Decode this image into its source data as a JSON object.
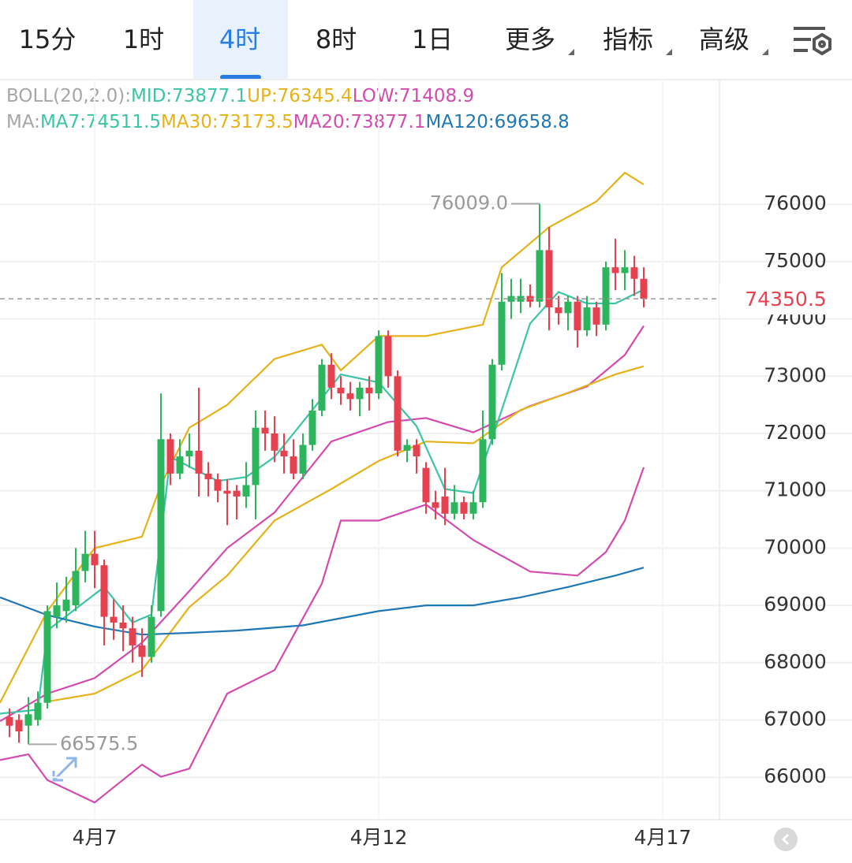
{
  "tabs": [
    "15分",
    "1时",
    "4时",
    "8时",
    "1日",
    "更多",
    "指标",
    "高级"
  ],
  "active_tab": 2,
  "chart_data": {
    "type": "candlestick",
    "legend": [
      [
        {
          "text": "BOLL(20,2.0):",
          "color": "#a6a6a6"
        },
        {
          "text": "MID:73877.1",
          "color": "#3cc4a6"
        },
        {
          "text": "UP:76345.4",
          "color": "#e6b21a"
        },
        {
          "text": "LOW:71408.9",
          "color": "#d44bb0"
        }
      ],
      [
        {
          "text": "MA:",
          "color": "#a6a6a6"
        },
        {
          "text": "MA7:74511.5",
          "color": "#3cc4a6"
        },
        {
          "text": "MA30:73173.5",
          "color": "#e6b21a"
        },
        {
          "text": "MA20:73877.1",
          "color": "#d44bb0"
        },
        {
          "text": "MA120:69658.8",
          "color": "#1f78b4"
        }
      ]
    ],
    "xlim": [
      -1,
      75
    ],
    "ylim": [
      65260,
      78190
    ],
    "yticks": [
      66000,
      67000,
      68000,
      69000,
      70000,
      71000,
      72000,
      73000,
      74000,
      75000,
      76000
    ],
    "xticks": [
      {
        "value": 9,
        "label": "4月7"
      },
      {
        "value": 39,
        "label": "4月12"
      },
      {
        "value": 69,
        "label": "4月17"
      }
    ],
    "grid": true,
    "up_color": "#2db55d",
    "down_color": "#e5414f",
    "candles": {
      "x": [
        0,
        1,
        2,
        3,
        4,
        5,
        6,
        7,
        8,
        9,
        10,
        11,
        12,
        13,
        14,
        15,
        16,
        17,
        18,
        19,
        20,
        21,
        22,
        23,
        24,
        25,
        26,
        27,
        28,
        29,
        30,
        31,
        32,
        33,
        34,
        35,
        36,
        37,
        38,
        39,
        40,
        41,
        42,
        43,
        44,
        45,
        46,
        47,
        48,
        49,
        50,
        51,
        52,
        53,
        54,
        55,
        56,
        57,
        58,
        59,
        60,
        61,
        62,
        63,
        64,
        65,
        66,
        67
      ],
      "open": [
        67050,
        67000,
        66900,
        67000,
        67300,
        68800,
        68900,
        69000,
        69600,
        69900,
        69700,
        68800,
        68700,
        68600,
        68300,
        68100,
        68900,
        71900,
        71300,
        71600,
        71700,
        71300,
        71200,
        71000,
        71000,
        70900,
        71100,
        72100,
        72000,
        71700,
        71600,
        71300,
        71800,
        72400,
        73200,
        72800,
        72700,
        72600,
        72800,
        72700,
        73700,
        73000,
        71700,
        71800,
        71400,
        70800,
        70900,
        70600,
        70800,
        70600,
        70800,
        71900,
        73200,
        74300,
        74300,
        74400,
        74300,
        75200,
        74200,
        74100,
        74300,
        73800,
        74200,
        73900,
        74900,
        74800,
        74900,
        74700
      ],
      "high": [
        67200,
        67100,
        67400,
        67500,
        69000,
        69400,
        69500,
        70000,
        70300,
        70300,
        69800,
        69100,
        69000,
        68800,
        68600,
        69000,
        72700,
        72000,
        71900,
        72000,
        72800,
        71500,
        71300,
        71200,
        71100,
        71500,
        72400,
        72400,
        72300,
        72000,
        71900,
        72000,
        72600,
        73300,
        73400,
        73000,
        72900,
        72900,
        73000,
        73800,
        73800,
        73100,
        71900,
        71900,
        71500,
        71000,
        71400,
        71100,
        70900,
        71000,
        72400,
        73300,
        74800,
        74700,
        74700,
        74600,
        76009,
        75600,
        74400,
        74400,
        74400,
        74400,
        74300,
        75000,
        75400,
        75200,
        75100,
        74900
      ],
      "low": [
        66700,
        66600,
        66575.5,
        66900,
        67200,
        68600,
        68700,
        68900,
        69400,
        69300,
        68300,
        68400,
        68200,
        68000,
        67750,
        68000,
        68800,
        71100,
        71200,
        71400,
        70900,
        70900,
        70800,
        70400,
        70500,
        70700,
        70500,
        71700,
        71500,
        71300,
        71200,
        71200,
        71700,
        72300,
        72600,
        72500,
        72400,
        72300,
        72400,
        72600,
        72800,
        71600,
        71500,
        71300,
        70600,
        70500,
        70400,
        70500,
        70500,
        70500,
        70700,
        71800,
        73100,
        74000,
        74100,
        74200,
        74200,
        73800,
        73900,
        73800,
        73500,
        73700,
        73700,
        73800,
        74500,
        74500,
        74400,
        74200
      ],
      "close": [
        66900,
        66800,
        67100,
        67300,
        68900,
        69000,
        69100,
        69600,
        69900,
        69700,
        68800,
        68700,
        68600,
        68300,
        68100,
        68800,
        71900,
        71300,
        71600,
        71700,
        71300,
        71200,
        71000,
        70950,
        70900,
        71100,
        72100,
        72000,
        71700,
        71600,
        71300,
        71800,
        72400,
        73200,
        72800,
        72700,
        72600,
        72800,
        72700,
        73700,
        73000,
        71700,
        71800,
        71600,
        70800,
        70700,
        70600,
        70800,
        70600,
        70800,
        71900,
        73200,
        74300,
        74400,
        74400,
        74300,
        75200,
        74200,
        74100,
        74300,
        73800,
        74200,
        73900,
        74900,
        74800,
        74900,
        74700,
        74350.5
      ]
    },
    "lines": [
      {
        "color": "#e6b21a",
        "x": [
          -1,
          4,
          9,
          14,
          16,
          19,
          23,
          28,
          33,
          35,
          39,
          44,
          50,
          52,
          57,
          62,
          65,
          67
        ],
        "values": [
          67300,
          68900,
          70000,
          70200,
          71100,
          72100,
          72500,
          73300,
          73550,
          73100,
          73700,
          73700,
          73900,
          74900,
          75600,
          76050,
          76550,
          76345.4
        ]
      },
      {
        "color": "#d44bb0",
        "x": [
          -1,
          2,
          4,
          9,
          14,
          16,
          19,
          23,
          28,
          33,
          35,
          39,
          44,
          49,
          55,
          60,
          63,
          65,
          67
        ],
        "values": [
          66300,
          66400,
          65950,
          65560,
          66220,
          66010,
          66150,
          67460,
          67870,
          69380,
          70480,
          70480,
          70760,
          70140,
          69590,
          69520,
          69930,
          70480,
          71408.9
        ]
      },
      {
        "color": "#d44bb0",
        "x": [
          -1,
          4,
          9,
          14,
          19,
          23,
          28,
          34,
          40,
          44,
          49,
          55,
          61,
          65,
          67
        ],
        "values": [
          66980,
          67460,
          67730,
          68350,
          69250,
          70000,
          70620,
          71860,
          72200,
          72270,
          72020,
          72480,
          72820,
          73370,
          73877.1
        ]
      },
      {
        "color": "#e6b21a",
        "x": [
          4,
          9,
          14,
          19,
          23,
          28,
          34,
          39,
          44,
          49,
          54,
          59,
          64,
          67
        ],
        "values": [
          67320,
          67460,
          67870,
          68970,
          69520,
          70480,
          71030,
          71520,
          71860,
          71830,
          72410,
          72710,
          73030,
          73173.5
        ]
      },
      {
        "color": "#3cc4a6",
        "x": [
          -1,
          3,
          4,
          10,
          13,
          15,
          17,
          22,
          25,
          28,
          32,
          35,
          39,
          43,
          46,
          49,
          52,
          55,
          58,
          61,
          64,
          67
        ],
        "values": [
          67110,
          67180,
          68560,
          69320,
          68700,
          68840,
          71590,
          71170,
          71240,
          71590,
          72410,
          73030,
          72890,
          72130,
          71030,
          70960,
          72410,
          73920,
          74470,
          74270,
          74270,
          74511.5
        ]
      },
      {
        "color": "#1f78b4",
        "x": [
          -1,
          4,
          9,
          14,
          19,
          24,
          31,
          39,
          44,
          49,
          54,
          59,
          64,
          67
        ],
        "values": [
          69140,
          68830,
          68630,
          68490,
          68520,
          68560,
          68650,
          68900,
          69000,
          69000,
          69140,
          69320,
          69520,
          69658.8
        ]
      }
    ],
    "annotations": [
      {
        "x": 56,
        "value": 76009.0,
        "label": "76009.0"
      },
      {
        "x": 2,
        "value": 66575.5,
        "label": "66575.5"
      }
    ],
    "last_price": {
      "value": 74350.5,
      "label": "74350.5"
    }
  }
}
